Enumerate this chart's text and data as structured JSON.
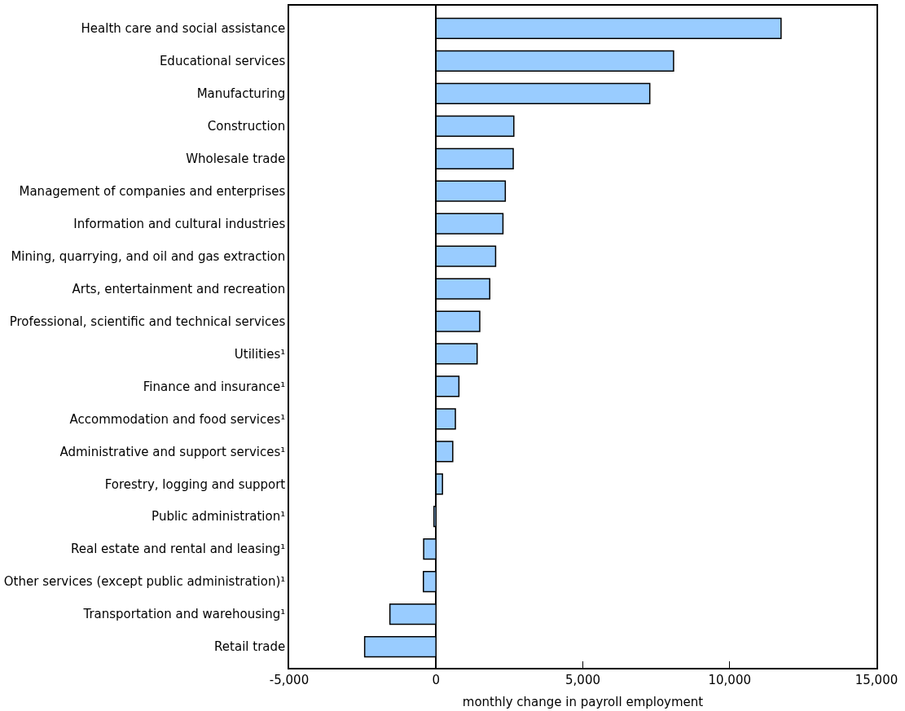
{
  "chart_data": {
    "type": "bar",
    "orientation": "horizontal",
    "xlabel": "monthly change in payroll employment",
    "categories": [
      "Health care and social assistance",
      "Educational services",
      "Manufacturing",
      "Construction",
      "Wholesale trade",
      "Management of companies and enterprises",
      "Information and cultural industries",
      "Mining, quarrying, and oil and gas extraction",
      "Arts, entertainment and recreation",
      "Professional, scientific and technical services",
      "Utilities¹",
      "Finance and insurance¹",
      "Accommodation and food services¹",
      "Administrative and support services¹",
      "Forestry, logging and support",
      "Public administration¹",
      "Real estate and rental and leasing¹",
      "Other services (except public administration)¹",
      "Transportation and warehousing¹",
      "Retail trade"
    ],
    "values": [
      11750,
      8090,
      7280,
      2650,
      2630,
      2360,
      2280,
      2030,
      1830,
      1490,
      1400,
      780,
      660,
      570,
      220,
      -70,
      -420,
      -430,
      -1570,
      -2430
    ],
    "color": "#99ccff",
    "xlim": [
      -5000,
      15000
    ],
    "xticks": [
      {
        "value": -5000,
        "label": "-5,000"
      },
      0,
      {
        "value": 5000,
        "label": "5,000"
      },
      {
        "value": 10000,
        "label": "10,000"
      },
      {
        "value": 15000,
        "label": "15,000"
      }
    ],
    "legend": false
  }
}
